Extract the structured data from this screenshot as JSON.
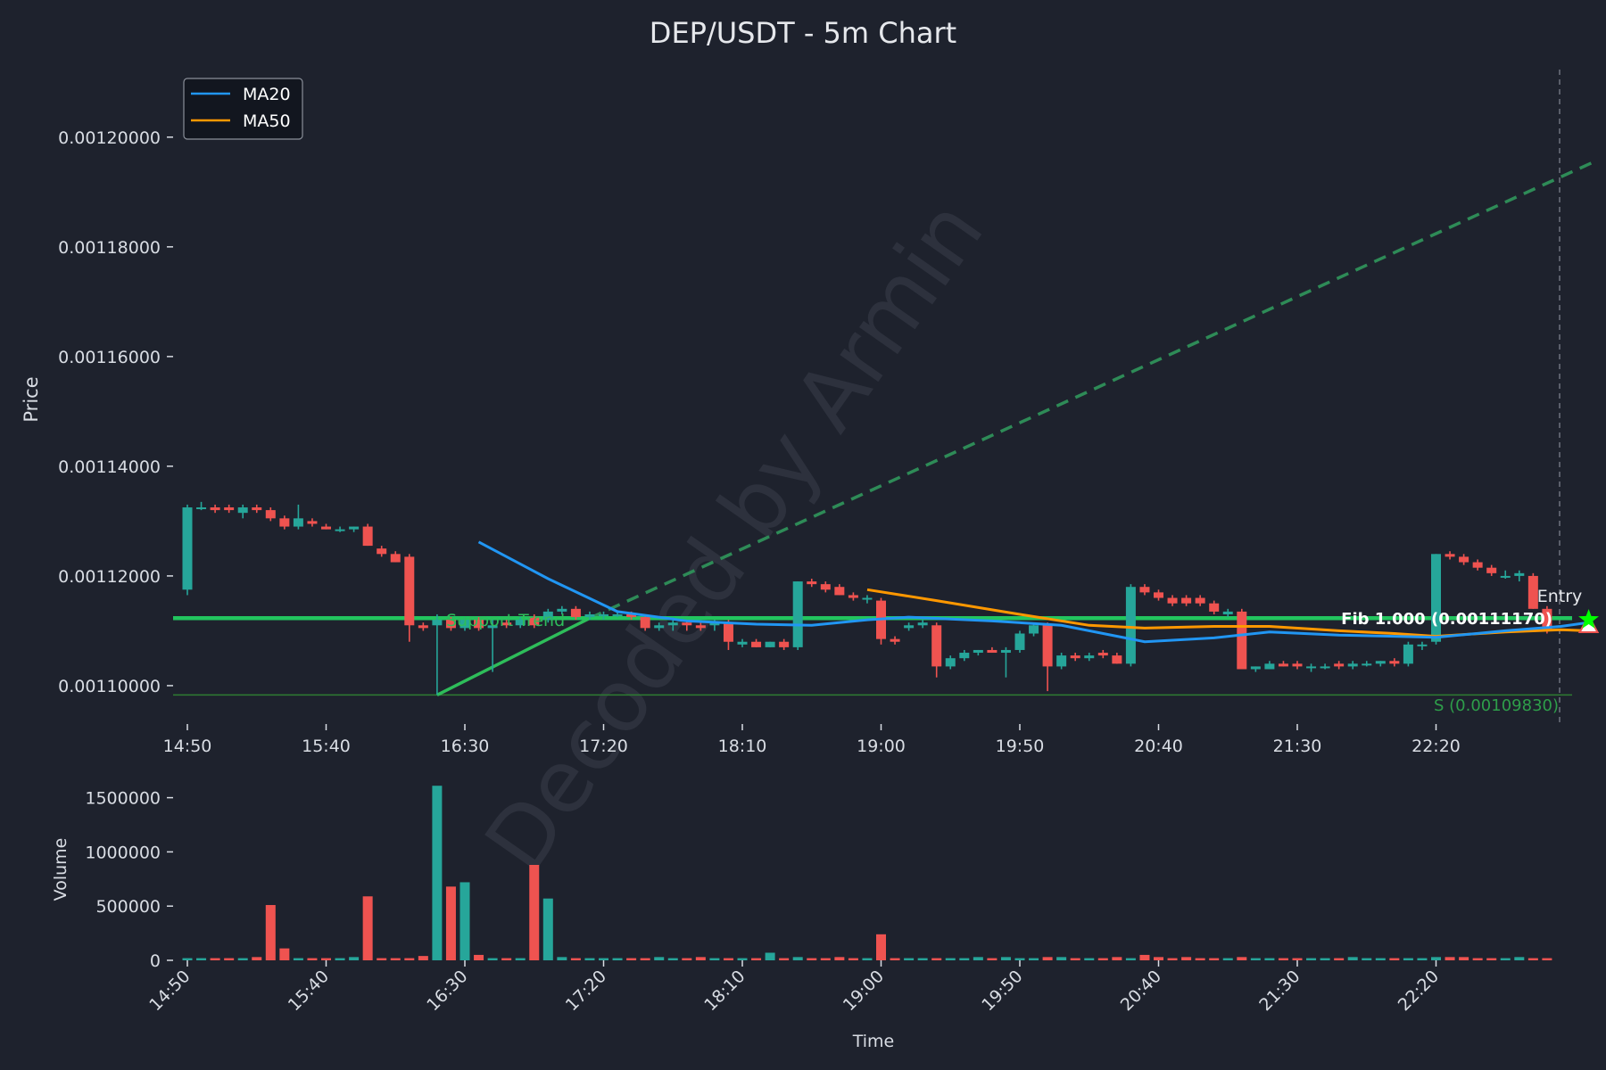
{
  "chart_data": {
    "type": "candlestick",
    "title": "DEP/USDT - 5m Chart",
    "watermark": "Decoded by Armin",
    "xlabel": "Time",
    "ylabel_price": "Price",
    "ylabel_volume": "Volume",
    "legend": [
      {
        "name": "MA20",
        "color": "#2196f3"
      },
      {
        "name": "MA50",
        "color": "#ff9800"
      }
    ],
    "legend_position": "top-left",
    "price_ylim": [
      0.001093,
      0.001212
    ],
    "volume_ylim": [
      0,
      1620000
    ],
    "price_ticks": [
      "0.00110000",
      "0.00112000",
      "0.00114000",
      "0.00116000",
      "0.00118000",
      "0.00120000"
    ],
    "volume_ticks": [
      "0",
      "500000",
      "1000000",
      "1500000"
    ],
    "time_ticks": [
      "14:50",
      "15:40",
      "16:30",
      "17:20",
      "18:10",
      "19:00",
      "19:50",
      "20:40",
      "21:30",
      "22:20"
    ],
    "up_color": "#26a69a",
    "down_color": "#ef5350",
    "candles": [
      {
        "o": 0.0011175,
        "h": 0.001133,
        "l": 0.0011165,
        "c": 0.0011325,
        "v": 20000
      },
      {
        "o": 0.0011325,
        "h": 0.0011335,
        "l": 0.001132,
        "c": 0.0011325,
        "v": 20000
      },
      {
        "o": 0.0011325,
        "h": 0.001133,
        "l": 0.0011315,
        "c": 0.001132,
        "v": 20000
      },
      {
        "o": 0.0011325,
        "h": 0.001133,
        "l": 0.0011315,
        "c": 0.001132,
        "v": 20000
      },
      {
        "o": 0.0011315,
        "h": 0.001133,
        "l": 0.0011305,
        "c": 0.0011325,
        "v": 20000
      },
      {
        "o": 0.0011325,
        "h": 0.001133,
        "l": 0.0011315,
        "c": 0.001132,
        "v": 30000
      },
      {
        "o": 0.001132,
        "h": 0.0011325,
        "l": 0.00113,
        "c": 0.0011305,
        "v": 510000
      },
      {
        "o": 0.0011305,
        "h": 0.001131,
        "l": 0.0011285,
        "c": 0.001129,
        "v": 110000
      },
      {
        "o": 0.001129,
        "h": 0.001133,
        "l": 0.0011285,
        "c": 0.0011305,
        "v": 20000
      },
      {
        "o": 0.00113,
        "h": 0.0011305,
        "l": 0.001129,
        "c": 0.0011295,
        "v": 20000
      },
      {
        "o": 0.001129,
        "h": 0.0011295,
        "l": 0.0011285,
        "c": 0.0011285,
        "v": 20000
      },
      {
        "o": 0.0011285,
        "h": 0.001129,
        "l": 0.001128,
        "c": 0.0011285,
        "v": 20000
      },
      {
        "o": 0.0011285,
        "h": 0.001129,
        "l": 0.001128,
        "c": 0.001129,
        "v": 30000
      },
      {
        "o": 0.001129,
        "h": 0.0011295,
        "l": 0.0011255,
        "c": 0.0011255,
        "v": 590000
      },
      {
        "o": 0.001125,
        "h": 0.0011255,
        "l": 0.0011235,
        "c": 0.001124,
        "v": 20000
      },
      {
        "o": 0.001124,
        "h": 0.0011245,
        "l": 0.0011225,
        "c": 0.0011225,
        "v": 20000
      },
      {
        "o": 0.0011235,
        "h": 0.001124,
        "l": 0.001108,
        "c": 0.001111,
        "v": 20000
      },
      {
        "o": 0.001111,
        "h": 0.0011115,
        "l": 0.00111,
        "c": 0.0011105,
        "v": 40000
      },
      {
        "o": 0.001111,
        "h": 0.001113,
        "l": 0.0010983,
        "c": 0.001112,
        "v": 1610000
      },
      {
        "o": 0.001112,
        "h": 0.0011125,
        "l": 0.00111,
        "c": 0.0011105,
        "v": 680000
      },
      {
        "o": 0.0011105,
        "h": 0.0011125,
        "l": 0.00111,
        "c": 0.001112,
        "v": 720000
      },
      {
        "o": 0.001112,
        "h": 0.0011125,
        "l": 0.00111,
        "c": 0.0011105,
        "v": 50000
      },
      {
        "o": 0.0011105,
        "h": 0.001112,
        "l": 0.0011025,
        "c": 0.001111,
        "v": 20000
      },
      {
        "o": 0.0011115,
        "h": 0.001112,
        "l": 0.0011105,
        "c": 0.001111,
        "v": 20000
      },
      {
        "o": 0.001111,
        "h": 0.0011125,
        "l": 0.0011105,
        "c": 0.001112,
        "v": 20000
      },
      {
        "o": 0.0011125,
        "h": 0.001113,
        "l": 0.0011105,
        "c": 0.001111,
        "v": 880000
      },
      {
        "o": 0.001112,
        "h": 0.001114,
        "l": 0.0011115,
        "c": 0.0011135,
        "v": 570000
      },
      {
        "o": 0.0011135,
        "h": 0.0011145,
        "l": 0.001113,
        "c": 0.001114,
        "v": 30000
      },
      {
        "o": 0.001114,
        "h": 0.0011145,
        "l": 0.001112,
        "c": 0.0011125,
        "v": 20000
      },
      {
        "o": 0.0011125,
        "h": 0.0011135,
        "l": 0.001112,
        "c": 0.001113,
        "v": 20000
      },
      {
        "o": 0.001113,
        "h": 0.0011135,
        "l": 0.001112,
        "c": 0.001113,
        "v": 20000
      },
      {
        "o": 0.001113,
        "h": 0.0011135,
        "l": 0.0011125,
        "c": 0.001113,
        "v": 20000
      },
      {
        "o": 0.001113,
        "h": 0.0011135,
        "l": 0.001112,
        "c": 0.0011125,
        "v": 20000
      },
      {
        "o": 0.0011125,
        "h": 0.001113,
        "l": 0.00111,
        "c": 0.0011105,
        "v": 20000
      },
      {
        "o": 0.0011105,
        "h": 0.0011115,
        "l": 0.00111,
        "c": 0.001111,
        "v": 30000
      },
      {
        "o": 0.001111,
        "h": 0.0011125,
        "l": 0.00111,
        "c": 0.0011115,
        "v": 20000
      },
      {
        "o": 0.0011115,
        "h": 0.001112,
        "l": 0.00111,
        "c": 0.001111,
        "v": 20000
      },
      {
        "o": 0.001111,
        "h": 0.0011115,
        "l": 0.00111,
        "c": 0.0011105,
        "v": 30000
      },
      {
        "o": 0.001111,
        "h": 0.001112,
        "l": 0.00111,
        "c": 0.0011115,
        "v": 20000
      },
      {
        "o": 0.0011115,
        "h": 0.001112,
        "l": 0.0011065,
        "c": 0.001108,
        "v": 20000
      },
      {
        "o": 0.0011075,
        "h": 0.0011085,
        "l": 0.001107,
        "c": 0.001108,
        "v": 20000
      },
      {
        "o": 0.001108,
        "h": 0.0011085,
        "l": 0.001107,
        "c": 0.001107,
        "v": 20000
      },
      {
        "o": 0.001107,
        "h": 0.001108,
        "l": 0.001107,
        "c": 0.001108,
        "v": 70000
      },
      {
        "o": 0.001108,
        "h": 0.0011085,
        "l": 0.0011065,
        "c": 0.001107,
        "v": 20000
      },
      {
        "o": 0.001107,
        "h": 0.001119,
        "l": 0.0011065,
        "c": 0.001119,
        "v": 30000
      },
      {
        "o": 0.001119,
        "h": 0.0011195,
        "l": 0.001118,
        "c": 0.0011185,
        "v": 20000
      },
      {
        "o": 0.0011185,
        "h": 0.001119,
        "l": 0.001117,
        "c": 0.0011175,
        "v": 20000
      },
      {
        "o": 0.001118,
        "h": 0.0011185,
        "l": 0.0011165,
        "c": 0.0011165,
        "v": 30000
      },
      {
        "o": 0.0011165,
        "h": 0.001117,
        "l": 0.0011155,
        "c": 0.001116,
        "v": 20000
      },
      {
        "o": 0.001116,
        "h": 0.0011165,
        "l": 0.001115,
        "c": 0.001116,
        "v": 20000
      },
      {
        "o": 0.0011155,
        "h": 0.001116,
        "l": 0.0011075,
        "c": 0.0011085,
        "v": 240000
      },
      {
        "o": 0.0011085,
        "h": 0.001109,
        "l": 0.0011075,
        "c": 0.001108,
        "v": 20000
      },
      {
        "o": 0.0011105,
        "h": 0.0011115,
        "l": 0.00111,
        "c": 0.001111,
        "v": 20000
      },
      {
        "o": 0.001111,
        "h": 0.001112,
        "l": 0.0011105,
        "c": 0.0011115,
        "v": 20000
      },
      {
        "o": 0.001111,
        "h": 0.0011115,
        "l": 0.0011015,
        "c": 0.0011035,
        "v": 20000
      },
      {
        "o": 0.0011035,
        "h": 0.0011055,
        "l": 0.001103,
        "c": 0.001105,
        "v": 20000
      },
      {
        "o": 0.001105,
        "h": 0.0011065,
        "l": 0.0011045,
        "c": 0.001106,
        "v": 20000
      },
      {
        "o": 0.001106,
        "h": 0.0011065,
        "l": 0.0011055,
        "c": 0.0011065,
        "v": 30000
      },
      {
        "o": 0.0011065,
        "h": 0.001107,
        "l": 0.001106,
        "c": 0.001106,
        "v": 20000
      },
      {
        "o": 0.001106,
        "h": 0.001107,
        "l": 0.0011015,
        "c": 0.0011065,
        "v": 30000
      },
      {
        "o": 0.0011065,
        "h": 0.00111,
        "l": 0.001106,
        "c": 0.0011095,
        "v": 20000
      },
      {
        "o": 0.0011095,
        "h": 0.0011115,
        "l": 0.001109,
        "c": 0.001111,
        "v": 20000
      },
      {
        "o": 0.001111,
        "h": 0.0011115,
        "l": 0.001099,
        "c": 0.0011035,
        "v": 30000
      },
      {
        "o": 0.0011035,
        "h": 0.001106,
        "l": 0.001103,
        "c": 0.0011055,
        "v": 30000
      },
      {
        "o": 0.0011055,
        "h": 0.001106,
        "l": 0.0011045,
        "c": 0.001105,
        "v": 20000
      },
      {
        "o": 0.001105,
        "h": 0.001106,
        "l": 0.0011045,
        "c": 0.0011055,
        "v": 20000
      },
      {
        "o": 0.001106,
        "h": 0.0011065,
        "l": 0.001105,
        "c": 0.0011055,
        "v": 20000
      },
      {
        "o": 0.0011055,
        "h": 0.001106,
        "l": 0.001104,
        "c": 0.001104,
        "v": 30000
      },
      {
        "o": 0.001104,
        "h": 0.0011185,
        "l": 0.0011035,
        "c": 0.001118,
        "v": 20000
      },
      {
        "o": 0.001118,
        "h": 0.0011185,
        "l": 0.0011165,
        "c": 0.001117,
        "v": 50000
      },
      {
        "o": 0.001117,
        "h": 0.0011175,
        "l": 0.0011155,
        "c": 0.001116,
        "v": 30000
      },
      {
        "o": 0.001116,
        "h": 0.0011165,
        "l": 0.0011145,
        "c": 0.001115,
        "v": 20000
      },
      {
        "o": 0.001116,
        "h": 0.0011165,
        "l": 0.0011145,
        "c": 0.001115,
        "v": 30000
      },
      {
        "o": 0.001116,
        "h": 0.0011165,
        "l": 0.0011145,
        "c": 0.001115,
        "v": 20000
      },
      {
        "o": 0.001115,
        "h": 0.0011155,
        "l": 0.001113,
        "c": 0.0011135,
        "v": 20000
      },
      {
        "o": 0.001113,
        "h": 0.001114,
        "l": 0.0011125,
        "c": 0.0011135,
        "v": 20000
      },
      {
        "o": 0.0011135,
        "h": 0.001114,
        "l": 0.001103,
        "c": 0.001103,
        "v": 30000
      },
      {
        "o": 0.001103,
        "h": 0.0011035,
        "l": 0.0011025,
        "c": 0.0011035,
        "v": 20000
      },
      {
        "o": 0.001103,
        "h": 0.0011045,
        "l": 0.001103,
        "c": 0.001104,
        "v": 20000
      },
      {
        "o": 0.001104,
        "h": 0.0011045,
        "l": 0.0011035,
        "c": 0.0011035,
        "v": 20000
      },
      {
        "o": 0.001104,
        "h": 0.0011045,
        "l": 0.001103,
        "c": 0.0011035,
        "v": 20000
      },
      {
        "o": 0.0011035,
        "h": 0.001104,
        "l": 0.0011025,
        "c": 0.0011035,
        "v": 20000
      },
      {
        "o": 0.0011035,
        "h": 0.001104,
        "l": 0.001103,
        "c": 0.0011035,
        "v": 20000
      },
      {
        "o": 0.001104,
        "h": 0.0011045,
        "l": 0.001103,
        "c": 0.0011035,
        "v": 20000
      },
      {
        "o": 0.0011035,
        "h": 0.0011045,
        "l": 0.001103,
        "c": 0.001104,
        "v": 30000
      },
      {
        "o": 0.001104,
        "h": 0.0011045,
        "l": 0.0011035,
        "c": 0.001104,
        "v": 20000
      },
      {
        "o": 0.001104,
        "h": 0.0011045,
        "l": 0.0011035,
        "c": 0.0011045,
        "v": 20000
      },
      {
        "o": 0.0011045,
        "h": 0.001105,
        "l": 0.0011035,
        "c": 0.001104,
        "v": 20000
      },
      {
        "o": 0.001104,
        "h": 0.001108,
        "l": 0.0011035,
        "c": 0.0011075,
        "v": 20000
      },
      {
        "o": 0.0011075,
        "h": 0.001108,
        "l": 0.0011065,
        "c": 0.0011075,
        "v": 20000
      },
      {
        "o": 0.001108,
        "h": 0.001124,
        "l": 0.0011075,
        "c": 0.001124,
        "v": 30000
      },
      {
        "o": 0.001124,
        "h": 0.0011245,
        "l": 0.001123,
        "c": 0.0011235,
        "v": 30000
      },
      {
        "o": 0.0011235,
        "h": 0.001124,
        "l": 0.001122,
        "c": 0.0011225,
        "v": 30000
      },
      {
        "o": 0.0011225,
        "h": 0.001123,
        "l": 0.001121,
        "c": 0.0011215,
        "v": 20000
      },
      {
        "o": 0.0011215,
        "h": 0.001122,
        "l": 0.00112,
        "c": 0.0011205,
        "v": 20000
      },
      {
        "o": 0.00112,
        "h": 0.001121,
        "l": 0.0011195,
        "c": 0.00112,
        "v": 20000
      },
      {
        "o": 0.00112,
        "h": 0.001121,
        "l": 0.001119,
        "c": 0.0011205,
        "v": 30000
      },
      {
        "o": 0.00112,
        "h": 0.0011205,
        "l": 0.001114,
        "c": 0.001114,
        "v": 20000
      },
      {
        "o": 0.001114,
        "h": 0.0011145,
        "l": 0.0011095,
        "c": 0.00111,
        "v": 20000
      }
    ],
    "ma20": [
      [
        0.0011262,
        21
      ],
      [
        0.0011195,
        26
      ],
      [
        0.0011135,
        31
      ],
      [
        0.0011118,
        36
      ],
      [
        0.0011112,
        41
      ],
      [
        0.001111,
        45
      ],
      [
        0.001112,
        49
      ],
      [
        0.0011125,
        52
      ],
      [
        0.0011118,
        58
      ],
      [
        0.001111,
        63
      ],
      [
        0.001108,
        69
      ],
      [
        0.0011087,
        74
      ],
      [
        0.0011098,
        78
      ],
      [
        0.0011092,
        83
      ],
      [
        0.001109,
        87
      ],
      [
        0.0011088,
        90
      ],
      [
        0.00111,
        95
      ],
      [
        0.0011108,
        99
      ],
      [
        0.0011115,
        101
      ]
    ],
    "ma50": [
      [
        0.0011175,
        49
      ],
      [
        0.0011155,
        54
      ],
      [
        0.001113,
        60
      ],
      [
        0.001111,
        65
      ],
      [
        0.0011105,
        69
      ],
      [
        0.0011108,
        74
      ],
      [
        0.0011108,
        78
      ],
      [
        0.00111,
        83
      ],
      [
        0.0011095,
        87
      ],
      [
        0.001109,
        90
      ],
      [
        0.0011098,
        95
      ],
      [
        0.0011102,
        99
      ],
      [
        0.00111,
        101
      ]
    ],
    "support_price": 0.0011123,
    "support_label": "Support Trend",
    "s_line_price": 0.0010983,
    "s_label": "S (0.00109830)",
    "fib_label": "Fib 1.000 (0.00111170)",
    "entry_label": "Entry",
    "trend_up": [
      [
        0.0010983,
        18
      ],
      [
        0.0011123,
        29
      ]
    ],
    "trend_projection": [
      [
        0.0011123,
        29
      ],
      [
        0.0011955,
        101
      ]
    ]
  }
}
